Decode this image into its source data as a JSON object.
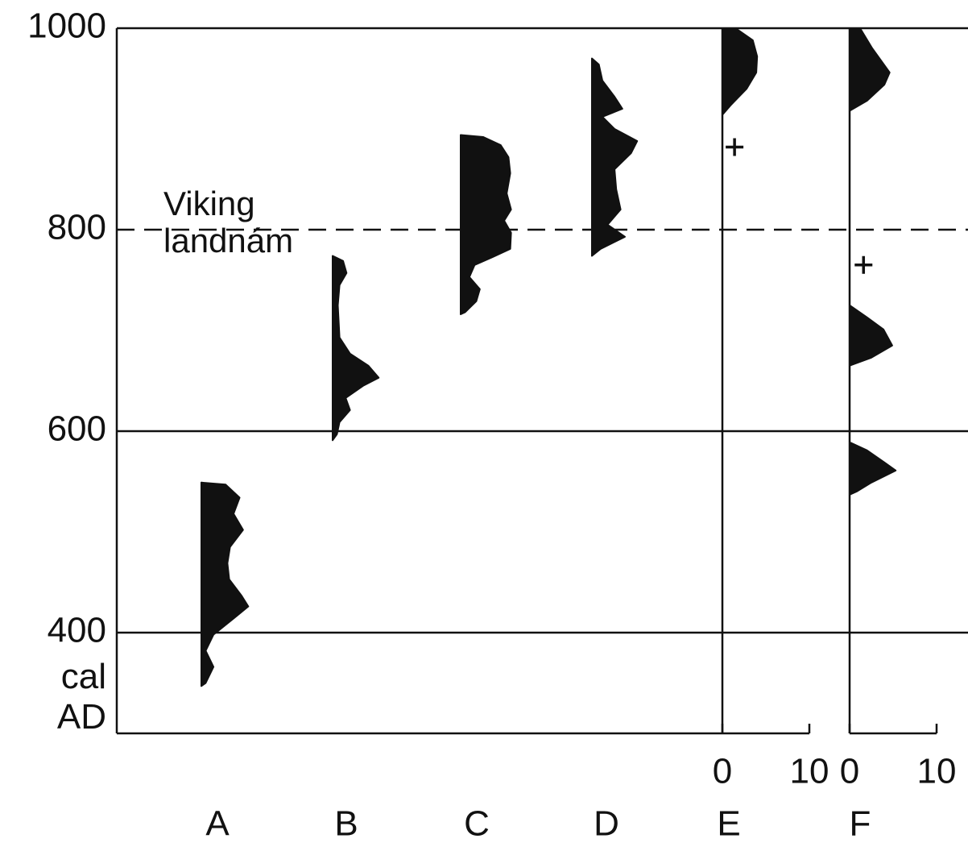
{
  "chart_data": {
    "type": "density",
    "color": "#111111",
    "ylim": [
      300,
      1000
    ],
    "yticks": [
      400,
      600,
      800,
      1000
    ],
    "y_label": "cal AD",
    "grid": true,
    "reference_line": {
      "value": 800,
      "label": "Viking landnám"
    },
    "categories": [
      "A",
      "B",
      "C",
      "D",
      "E",
      "F"
    ],
    "xlim": [
      0,
      10
    ],
    "xticks": [
      0,
      10
    ],
    "distributions": [
      {
        "years": [
          549,
          547,
          534,
          518,
          502,
          485,
          469,
          453,
          437,
          426,
          414,
          398,
          382,
          366,
          350,
          347
        ],
        "density": [
          0,
          2.8,
          4.4,
          3.7,
          4.8,
          3.3,
          3.0,
          3.2,
          4.6,
          5.4,
          3.7,
          1.4,
          0.5,
          1.4,
          0.5,
          0
        ]
      },
      {
        "years": [
          774,
          769,
          757,
          745,
          725,
          693,
          677,
          665,
          653,
          645,
          633,
          621,
          609,
          597,
          591
        ],
        "density": [
          0,
          1.2,
          1.6,
          0.8,
          0.6,
          0.8,
          2.0,
          4.1,
          5.3,
          3.5,
          1.5,
          2.0,
          0.8,
          0.5,
          0
        ]
      },
      {
        "years": [
          894,
          892,
          884,
          872,
          856,
          836,
          820,
          809,
          797,
          781,
          773,
          765,
          753,
          741,
          729,
          718,
          716
        ],
        "density": [
          0,
          2.6,
          4.6,
          5.5,
          5.7,
          5.3,
          5.8,
          5.0,
          5.8,
          5.7,
          3.7,
          1.6,
          1.0,
          2.2,
          1.8,
          0.5,
          0
        ]
      },
      {
        "years": [
          970,
          964,
          948,
          932,
          920,
          912,
          900,
          888,
          876,
          860,
          840,
          820,
          805,
          793,
          781,
          774
        ],
        "density": [
          0,
          0.8,
          1.2,
          2.6,
          3.5,
          1.2,
          2.6,
          5.2,
          4.5,
          2.6,
          2.8,
          3.3,
          1.8,
          3.8,
          1.0,
          0
        ]
      },
      {
        "years": [
          1000,
          988,
          972,
          956,
          940,
          924,
          914
        ],
        "density": [
          1.5,
          3.5,
          4.0,
          3.9,
          2.8,
          1.0,
          0
        ],
        "scale": true,
        "plus": {
          "year": 882,
          "density": 1.4
        }
      },
      {
        "years": [
          1000,
          980,
          956,
          944,
          928,
          918,
          null,
          725,
          713,
          701,
          685,
          673,
          665,
          null,
          589,
          581,
          569,
          561,
          549,
          540,
          537
        ],
        "density": [
          1.2,
          2.6,
          4.6,
          4.0,
          2.0,
          0,
          null,
          0,
          2.0,
          3.9,
          4.9,
          2.5,
          0,
          null,
          0,
          2.0,
          4.0,
          5.3,
          2.5,
          0.8,
          0
        ],
        "scale": true,
        "plus": {
          "year": 765,
          "density": 1.6
        }
      }
    ]
  }
}
